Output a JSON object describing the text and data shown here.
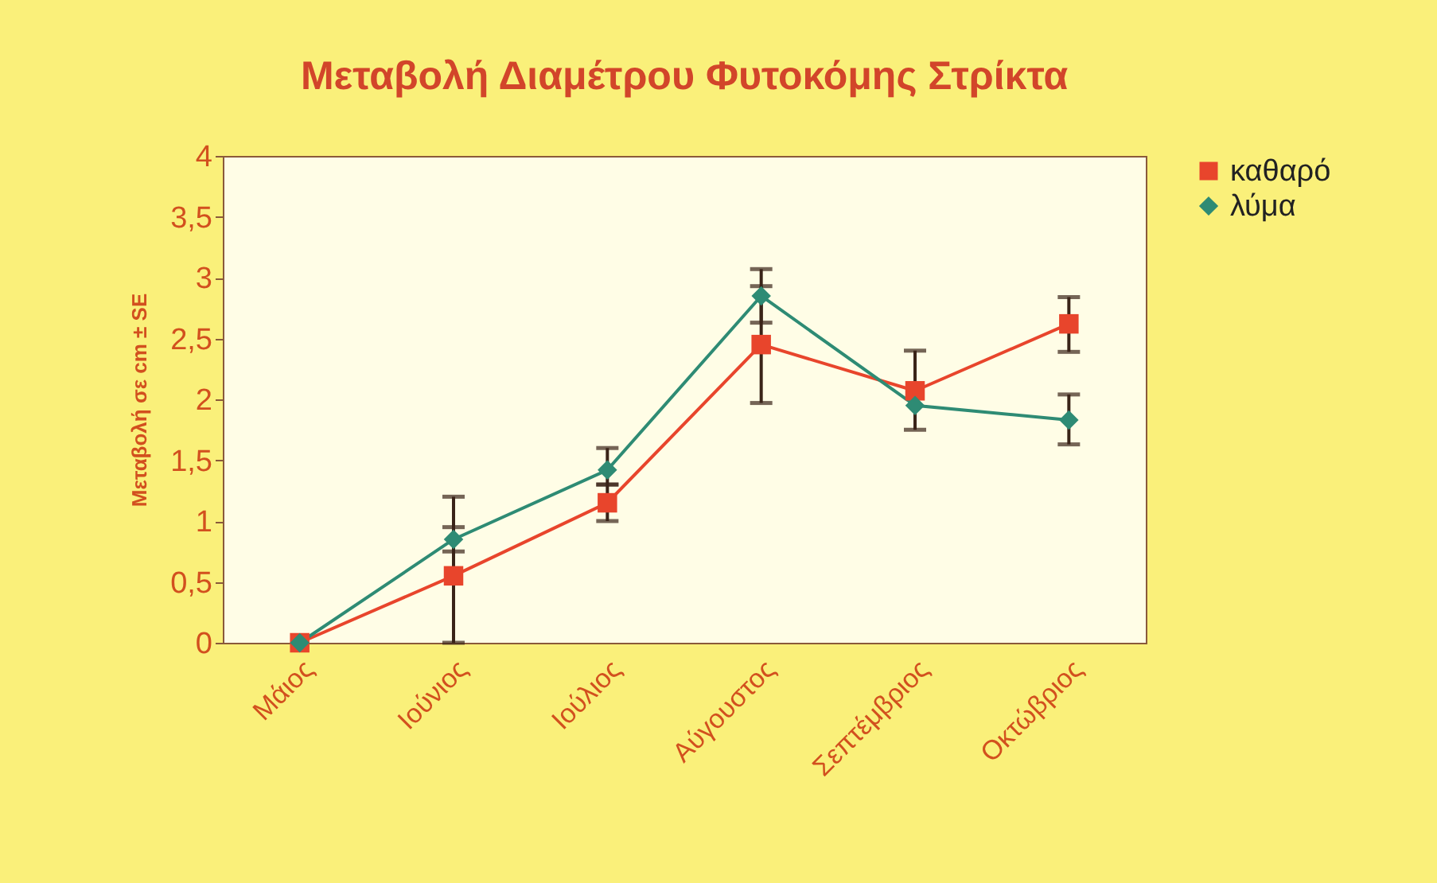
{
  "chart_data": {
    "type": "line",
    "title": "Μεταβολή Διαμέτρου Φυτοκόμης Στρίκτα",
    "ylabel": "Μεταβολή σε cm ± SE",
    "categories": [
      "Μάιος",
      "Ιούνιος",
      "Ιούλιος",
      "Αύγουστος",
      "Σεπτέμβριος",
      "Οκτώβριος"
    ],
    "series": [
      {
        "name": "καθαρό",
        "color": "#e8452c",
        "marker": "square",
        "values": [
          0,
          0.55,
          1.15,
          2.45,
          2.07,
          2.62
        ],
        "errors": [
          null,
          [
            0,
            1.2
          ],
          [
            1.0,
            1.3
          ],
          [
            1.97,
            2.93
          ],
          [
            1.75,
            2.4
          ],
          [
            2.39,
            2.84
          ]
        ]
      },
      {
        "name": "λύμα",
        "color": "#2e8b74",
        "marker": "diamond",
        "values": [
          0,
          0.85,
          1.42,
          2.85,
          1.95,
          1.83
        ],
        "errors": [
          null,
          [
            0.75,
            0.95
          ],
          [
            1.3,
            1.6
          ],
          [
            2.63,
            3.07
          ],
          null,
          [
            1.63,
            2.04
          ]
        ]
      }
    ],
    "ylim": [
      0,
      4
    ],
    "yticks": [
      0,
      {
        "value": 0.5,
        "label": "0,5"
      },
      1,
      {
        "value": 1.5,
        "label": "1,5"
      },
      2,
      {
        "value": 2.5,
        "label": "2,5"
      },
      3,
      {
        "value": 3.5,
        "label": "3,5"
      },
      4
    ],
    "legend": "right",
    "grid": false
  }
}
